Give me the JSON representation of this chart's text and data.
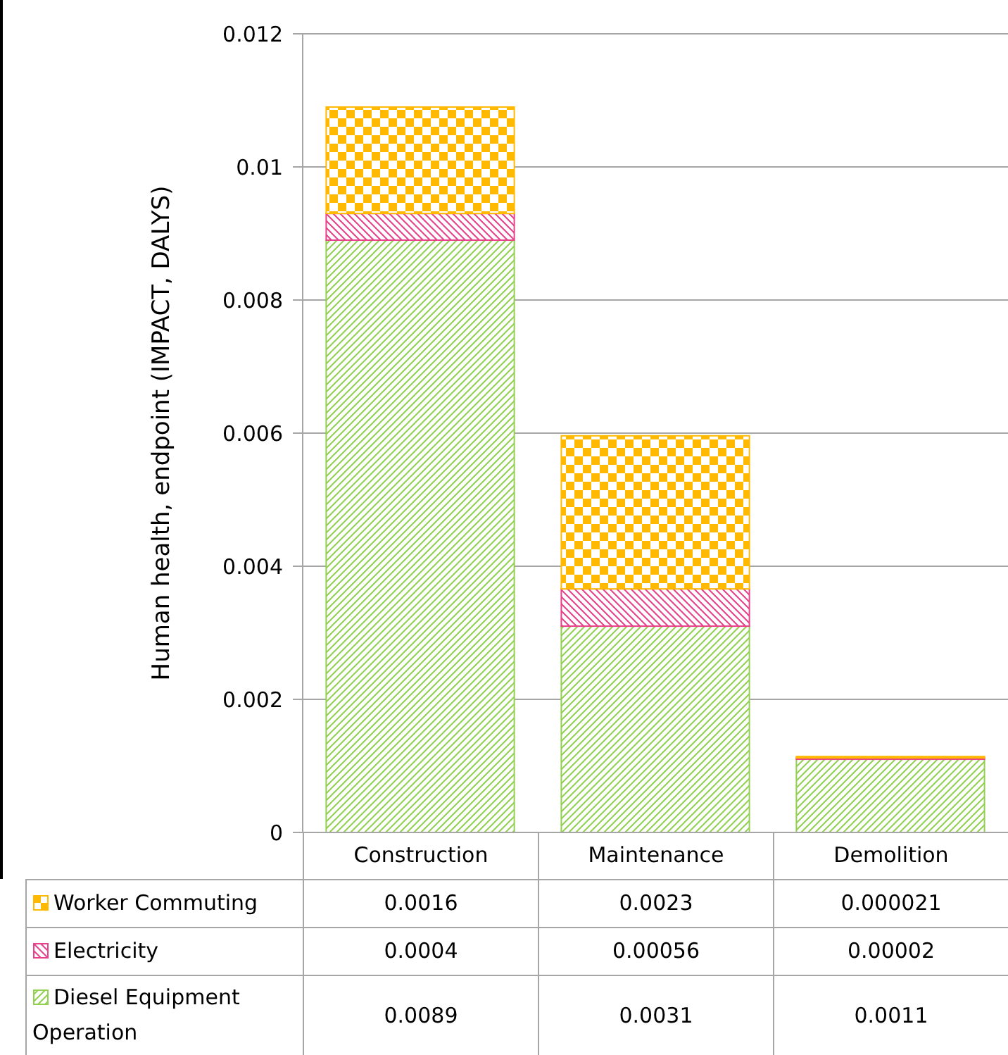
{
  "chart_data": {
    "type": "bar",
    "ylabel": "Human health, endpoint (IMPACT, DALYS)",
    "categories": [
      "Construction",
      "Maintenance",
      "Demolition"
    ],
    "stacked": true,
    "series": [
      {
        "name": "Diesel Equipment Operation",
        "color": "#92d050",
        "values": [
          0.0089,
          0.0031,
          0.0011
        ],
        "value_labels": [
          "0.0089",
          "0.0031",
          "0.0011"
        ]
      },
      {
        "name": "Electricity",
        "color": "#e8408a",
        "values": [
          0.0004,
          0.00056,
          2e-05
        ],
        "value_labels": [
          "0.0004",
          "0.00056",
          "0.00002"
        ]
      },
      {
        "name": "Worker Commuting",
        "color": "#ffb900",
        "values": [
          0.0016,
          0.0023,
          2.1e-05
        ],
        "value_labels": [
          "0.0016",
          "0.0023",
          "0.000021"
        ]
      }
    ],
    "ylim": [
      0,
      0.012
    ],
    "yticks": [
      0,
      0.002,
      0.004,
      0.006,
      0.008,
      0.01,
      0.012
    ],
    "grid": "y",
    "legend": "bottom"
  }
}
